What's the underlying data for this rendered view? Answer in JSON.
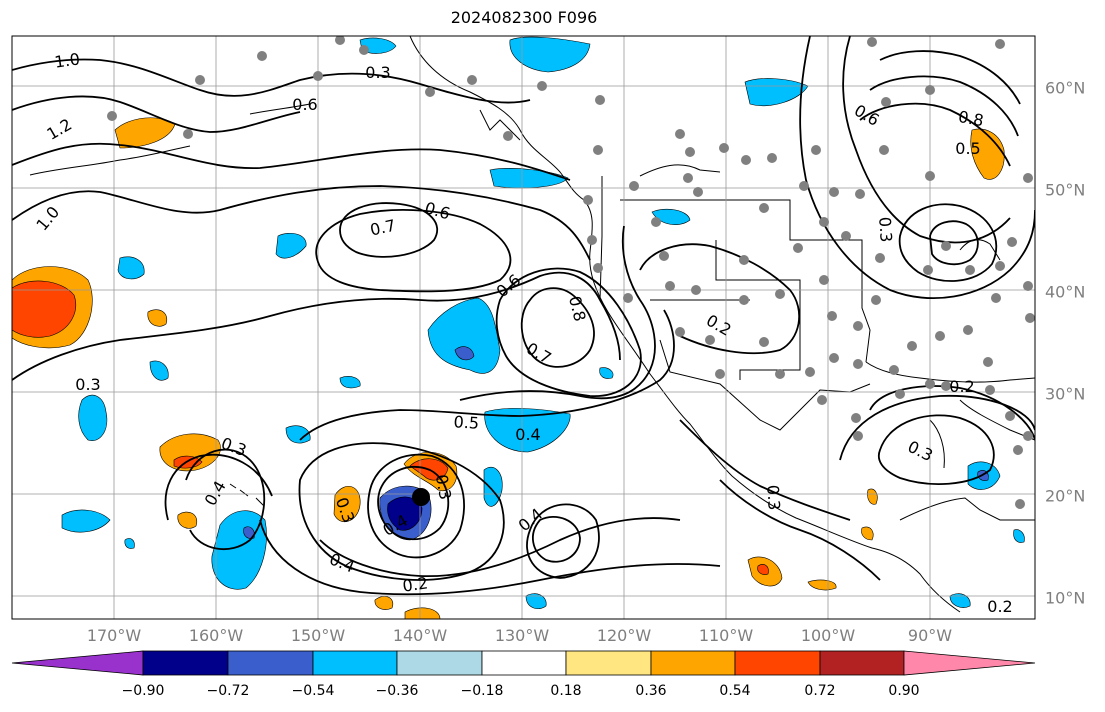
{
  "title": "2024082300 F096",
  "map": {
    "lon_labels": [
      "170°W",
      "160°W",
      "150°W",
      "140°W",
      "130°W",
      "120°W",
      "110°W",
      "100°W",
      "90°W"
    ],
    "lat_labels": [
      "60°N",
      "50°N",
      "40°N",
      "30°N",
      "20°N",
      "10°N"
    ],
    "contour_labels": [
      "1.0",
      "0.3",
      "0.6",
      "1.2",
      "1.0",
      "0.7",
      "0.6",
      "0.6",
      "0.8",
      "0.7",
      "0.3",
      "0.2",
      "0.5",
      "0.4",
      "0.3",
      "0.4",
      "0.3",
      "0.4",
      "0.4",
      "0.2",
      "0.4",
      "0.3",
      "0.3",
      "0.2",
      "0.3",
      "0.8",
      "0.6",
      "0.5",
      "0.3",
      "0.2"
    ],
    "colors": {
      "land_outline": "#000000",
      "grid": "#999999",
      "stations": "#808080",
      "storm_center": "#000000"
    }
  },
  "colorbar": {
    "tick_labels": [
      "−0.90",
      "−0.72",
      "−0.54",
      "−0.36",
      "−0.18",
      "0.18",
      "0.36",
      "0.54",
      "0.72",
      "0.90"
    ],
    "colors": [
      "#9932cc",
      "#00008b",
      "#3a5fcd",
      "#00bfff",
      "#add8e6",
      "#ffffff",
      "#ffe680",
      "#ffa500",
      "#ff4500",
      "#b22222",
      "#ff88aa"
    ]
  }
}
